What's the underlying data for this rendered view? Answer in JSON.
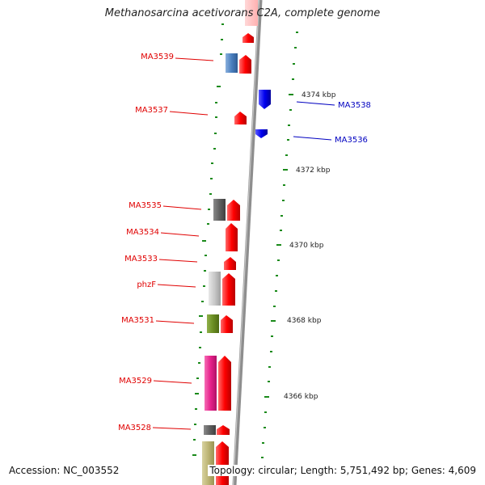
{
  "title": "Methanosarcina acetivorans C2A, complete genome",
  "accession": "Accession: NC_003552",
  "summary": "Topology: circular; Length: 5,751,492 bp; Genes: 4,609",
  "colors": {
    "forward_label": "#e00000",
    "reverse_label": "#0000c0",
    "tick": "#1a8a1a",
    "backbone": "#888888"
  },
  "scale_labels": [
    "4374 kbp",
    "4372 kbp",
    "4370 kbp",
    "4368 kbp",
    "4366 kbp"
  ],
  "genes_left": [
    {
      "label": "MA3539",
      "color": "#4a7fbf",
      "strand": "forward"
    },
    {
      "label": "MA3537",
      "color": "#e00000",
      "strand": "forward"
    },
    {
      "label": "MA3535",
      "color": "#666666",
      "strand": "forward"
    },
    {
      "label": "MA3534",
      "color": "#e00000",
      "strand": "forward"
    },
    {
      "label": "MA3533",
      "color": "#e00000",
      "strand": "forward"
    },
    {
      "label": "phzF",
      "color": "#c8c8c8",
      "strand": "forward"
    },
    {
      "label": "MA3531",
      "color": "#6b8e23",
      "strand": "forward"
    },
    {
      "label": "MA3529",
      "color": "#e6208a",
      "strand": "forward"
    },
    {
      "label": "MA3528",
      "color": "#777777",
      "strand": "forward"
    }
  ],
  "genes_right": [
    {
      "label": "MA3538",
      "color": "#0000ee",
      "strand": "reverse"
    },
    {
      "label": "MA3536",
      "color": "#0000ee",
      "strand": "reverse"
    }
  ]
}
